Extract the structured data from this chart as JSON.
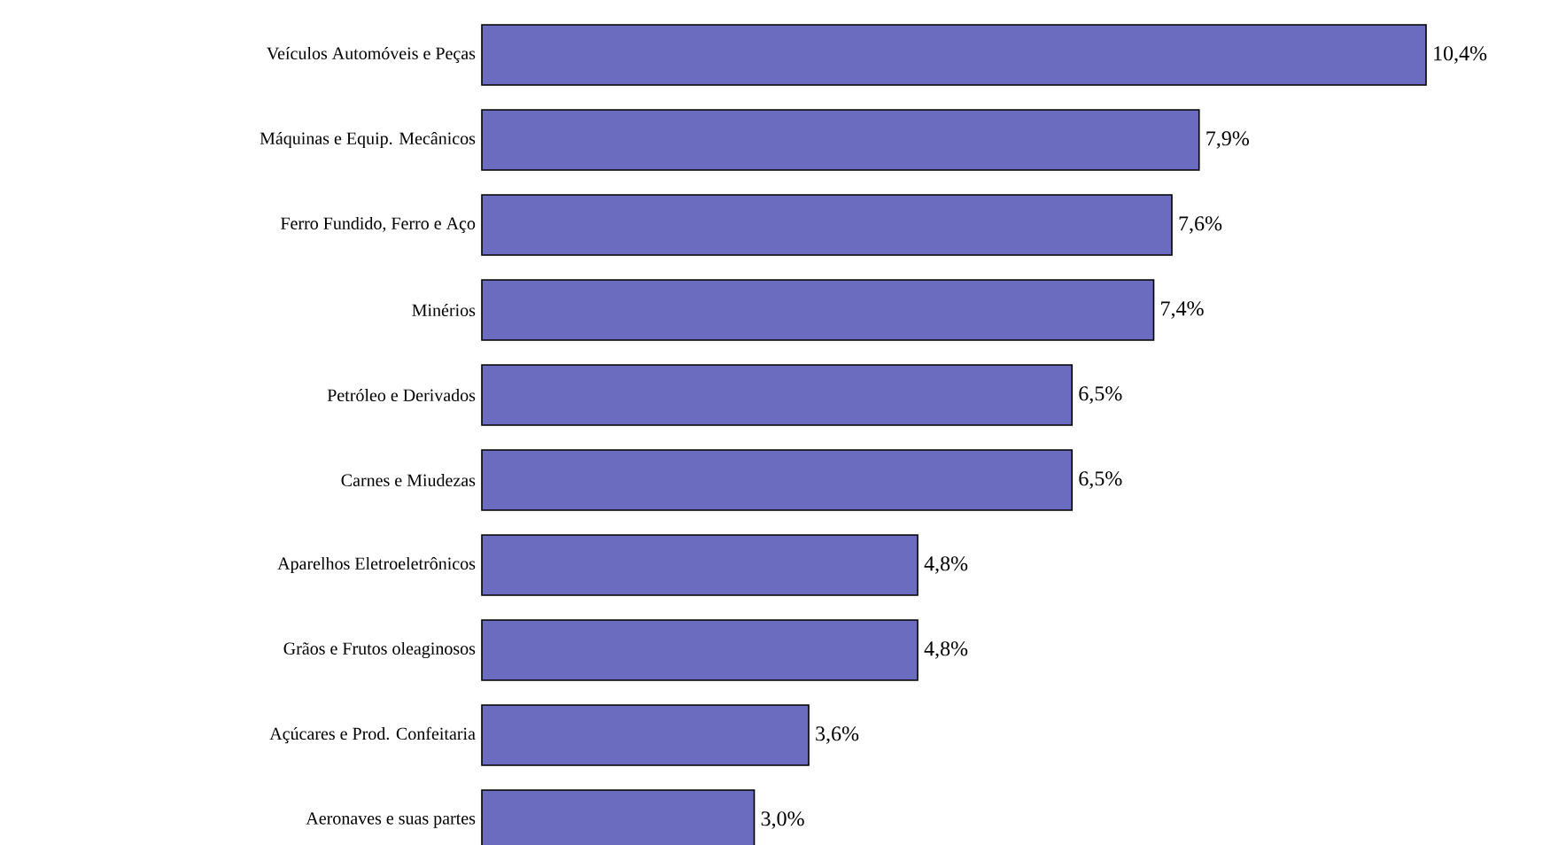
{
  "chart_data": {
    "type": "bar",
    "orientation": "horizontal",
    "categories": [
      "Veículos Automóveis e Peças",
      "Máquinas e Equip. Mecânicos",
      "Ferro Fundido, Ferro e Aço",
      "Minérios",
      "Petróleo e Derivados",
      "Carnes e Miudezas",
      "Aparelhos Eletroeletrônicos",
      "Grãos e Frutos oleaginosos",
      "Açúcares e Prod. Confeitaria",
      "Aeronaves e suas partes"
    ],
    "values": [
      10.4,
      7.9,
      7.6,
      7.4,
      6.5,
      6.5,
      4.8,
      4.8,
      3.6,
      3.0
    ],
    "value_labels": [
      "10,4%",
      "7,9%",
      "7,6%",
      "7,4%",
      "6,5%",
      "6,5%",
      "4,8%",
      "4,8%",
      "3,6%",
      "3,0%"
    ],
    "color": "#6b6bbf"
  }
}
